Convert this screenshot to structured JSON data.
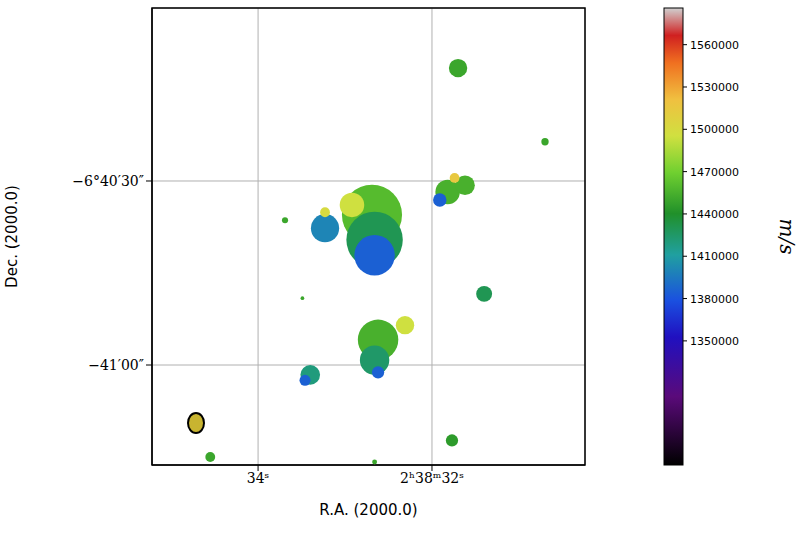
{
  "chart_data": {
    "type": "scatter",
    "x_label": "R.A. (2000.0)",
    "y_label": "Dec. (2000.0)",
    "xlim": [
      9515.22,
      9510.24
    ],
    "xticks": [
      {
        "value": 9514,
        "label": "34ˢ"
      },
      {
        "value": 9512,
        "label": "2ʰ38ᵐ32ˢ"
      }
    ],
    "ylim": [
      -24076.3,
      -24001.8
    ],
    "yticks": [
      {
        "value": -24060,
        "label": "−41′00″"
      },
      {
        "value": -24030,
        "label": "−6°40′30″"
      }
    ],
    "grid": true,
    "x": [
      9512.69,
      9512.66,
      9512.66,
      9512.92,
      9513.23,
      9513.23,
      9511.82,
      9511.62,
      9511.74,
      9511.91,
      9511.7,
      9510.7,
      9511.4,
      9512.62,
      9512.66,
      9512.31,
      9512.62,
      9513.4,
      9513.46,
      9511.77,
      9514.55,
      9513.69,
      9513.49,
      9512.66
    ],
    "y": [
      -24035.5,
      -24039.6,
      -24042.1,
      -24033.9,
      -24037.7,
      -24035.1,
      -24031.8,
      -24030.7,
      -24029.5,
      -24033.1,
      -24011.6,
      -24023.6,
      -24048.4,
      -24055.9,
      -24059.2,
      -24053.5,
      -24061.2,
      -24061.6,
      -24062.5,
      -24072.3,
      -24075.0,
      -24036.4,
      -24049.1,
      -24075.8
    ],
    "size": [
      4.9,
      4.6,
      3.3,
      2.0,
      2.3,
      0.8,
      2.0,
      1.6,
      0.8,
      1.1,
      1.5,
      0.6,
      1.3,
      3.3,
      2.4,
      1.5,
      1.0,
      1.6,
      0.9,
      1.0,
      0.8,
      0.5,
      0.3,
      0.4
    ],
    "velocity": [
      1460000,
      1430000,
      1385000,
      1495000,
      1400000,
      1500000,
      1455000,
      1455000,
      1515000,
      1385000,
      1450000,
      1450000,
      1430000,
      1455000,
      1425000,
      1495000,
      1385000,
      1420000,
      1385000,
      1445000,
      1450000,
      1450000,
      1450000,
      1450000
    ],
    "colorbar": {
      "range": [
        1262000,
        1586000
      ],
      "ticks": [
        1350000,
        1380000,
        1410000,
        1440000,
        1470000,
        1500000,
        1530000,
        1560000
      ],
      "label": "m/s"
    }
  }
}
